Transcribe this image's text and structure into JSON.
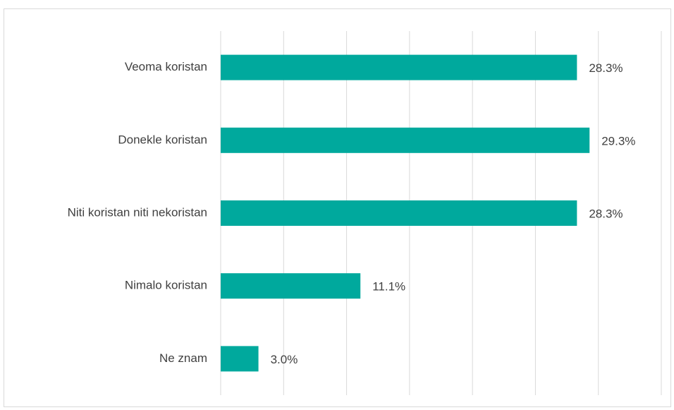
{
  "chart_data": {
    "type": "bar",
    "orientation": "horizontal",
    "categories": [
      "Veoma koristan",
      "Donekle koristan",
      "Niti koristan niti nekoristan",
      "Nimalo koristan",
      "Ne znam"
    ],
    "values": [
      28.3,
      29.3,
      28.3,
      11.1,
      3.0
    ],
    "value_labels": [
      "28.3%",
      "29.3%",
      "28.3%",
      "11.1%",
      "3.0%"
    ],
    "color": "#00a99d",
    "xlim": [
      0,
      35
    ],
    "xticks": [
      0,
      5,
      10,
      15,
      20,
      25,
      30,
      35
    ],
    "grid": true
  }
}
